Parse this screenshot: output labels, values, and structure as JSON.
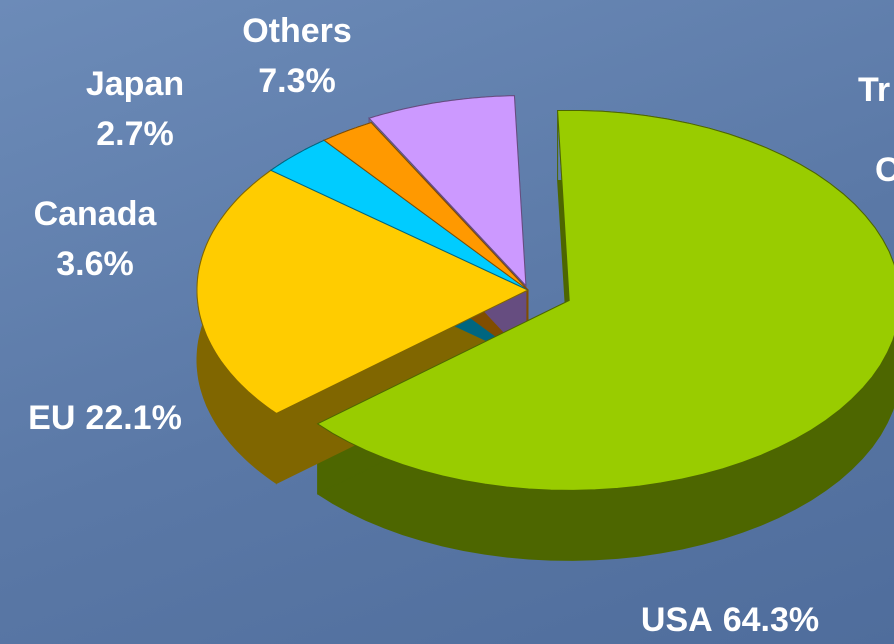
{
  "chart_data": {
    "type": "pie",
    "categories": [
      "USA",
      "EU",
      "Canada",
      "Japan",
      "Others"
    ],
    "values": [
      64.3,
      22.1,
      3.6,
      2.7,
      7.3
    ],
    "value_labels": [
      "64.3%",
      "22.1%",
      "3.6%",
      "2.7%",
      "7.3%"
    ],
    "colors": [
      "#99cc00",
      "#ffcc00",
      "#00ccff",
      "#ff9900",
      "#cc99ff"
    ],
    "side_colors": [
      "#4d6600",
      "#806600",
      "#006680",
      "#804d00",
      "#664d80"
    ],
    "annotations": [
      "Tr",
      "C"
    ]
  }
}
